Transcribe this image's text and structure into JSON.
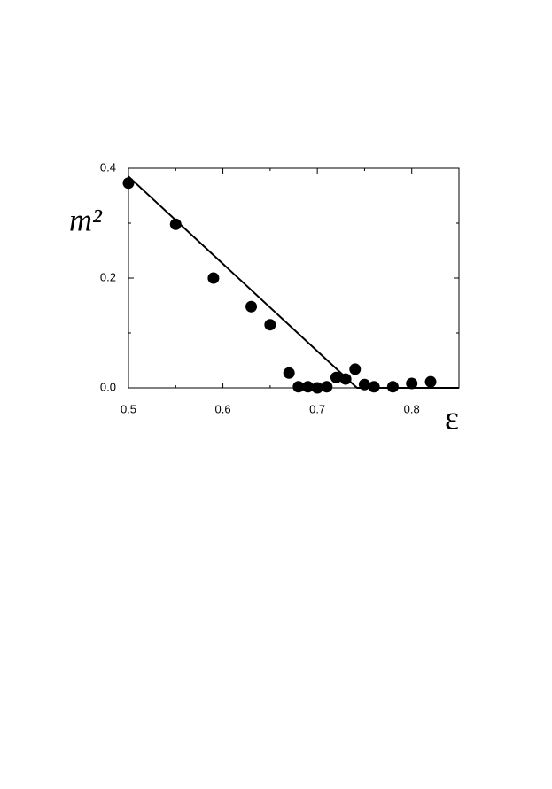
{
  "chart_data": {
    "type": "scatter",
    "x_label": "ε",
    "y_label": "m²",
    "xlim": [
      0.5,
      0.85
    ],
    "ylim": [
      0,
      0.4
    ],
    "xticks": [
      0.5,
      0.6,
      0.7,
      0.8
    ],
    "yticks": [
      {
        "value": 0,
        "label": "0.0"
      },
      0.2,
      0.4
    ],
    "x_minor_ticks": [
      0.55,
      0.65,
      0.75
    ],
    "y_minor_ticks": [
      0.1,
      0.3
    ],
    "series": [
      {
        "kind": "points",
        "color": "#000000",
        "x": [
          0.5,
          0.55,
          0.59,
          0.63,
          0.65,
          0.67,
          0.68,
          0.69,
          0.7,
          0.71,
          0.72,
          0.73,
          0.74,
          0.75,
          0.76,
          0.78,
          0.8,
          0.82
        ],
        "values": [
          0.373,
          0.298,
          0.2,
          0.148,
          0.115,
          0.027,
          0.002,
          0.002,
          0.0,
          0.002,
          0.019,
          0.016,
          0.034,
          0.006,
          0.002,
          0.002,
          0.008,
          0.011
        ]
      },
      {
        "kind": "line",
        "color": "#000000",
        "x": [
          0.5,
          0.742,
          0.85
        ],
        "values": [
          0.385,
          0,
          0
        ]
      }
    ]
  }
}
